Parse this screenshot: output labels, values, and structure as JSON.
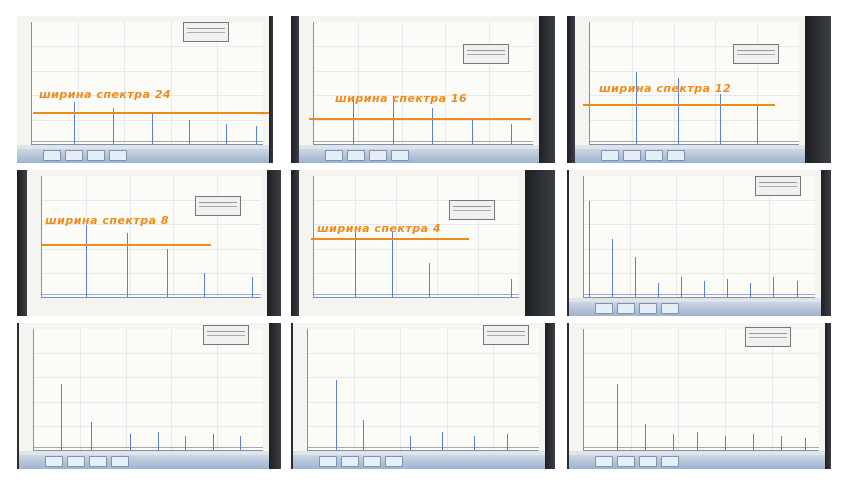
{
  "captions": [
    "ширина спектра 24",
    "ширина спектра 16",
    "ширина спектра 12",
    "ширина спектра 8",
    "ширина спектра 4"
  ],
  "colors": {
    "annotation": "#f08a1a",
    "spike": "#5a7fd6",
    "screen": "#f4f4f1"
  }
}
